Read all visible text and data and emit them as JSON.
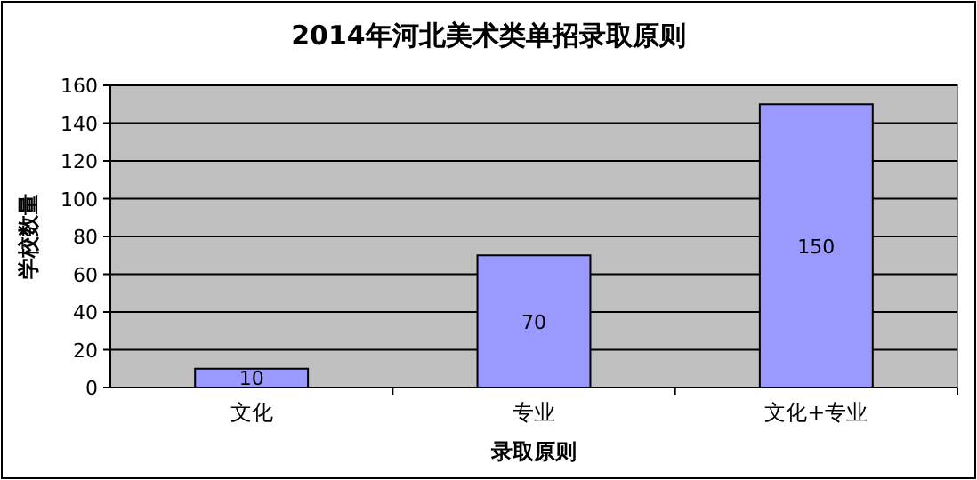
{
  "chart_data": {
    "type": "bar",
    "title": "2014年河北美术类单招录取原则",
    "xlabel": "录取原则",
    "ylabel": "学校数量",
    "categories": [
      "文化",
      "专业",
      "文化+专业"
    ],
    "values": [
      10,
      70,
      150
    ],
    "color": "#9999ff",
    "ylim": [
      0,
      160
    ],
    "yticks": [
      0,
      20,
      40,
      60,
      80,
      100,
      120,
      140,
      160
    ],
    "grid": "y",
    "data_labels": true
  }
}
